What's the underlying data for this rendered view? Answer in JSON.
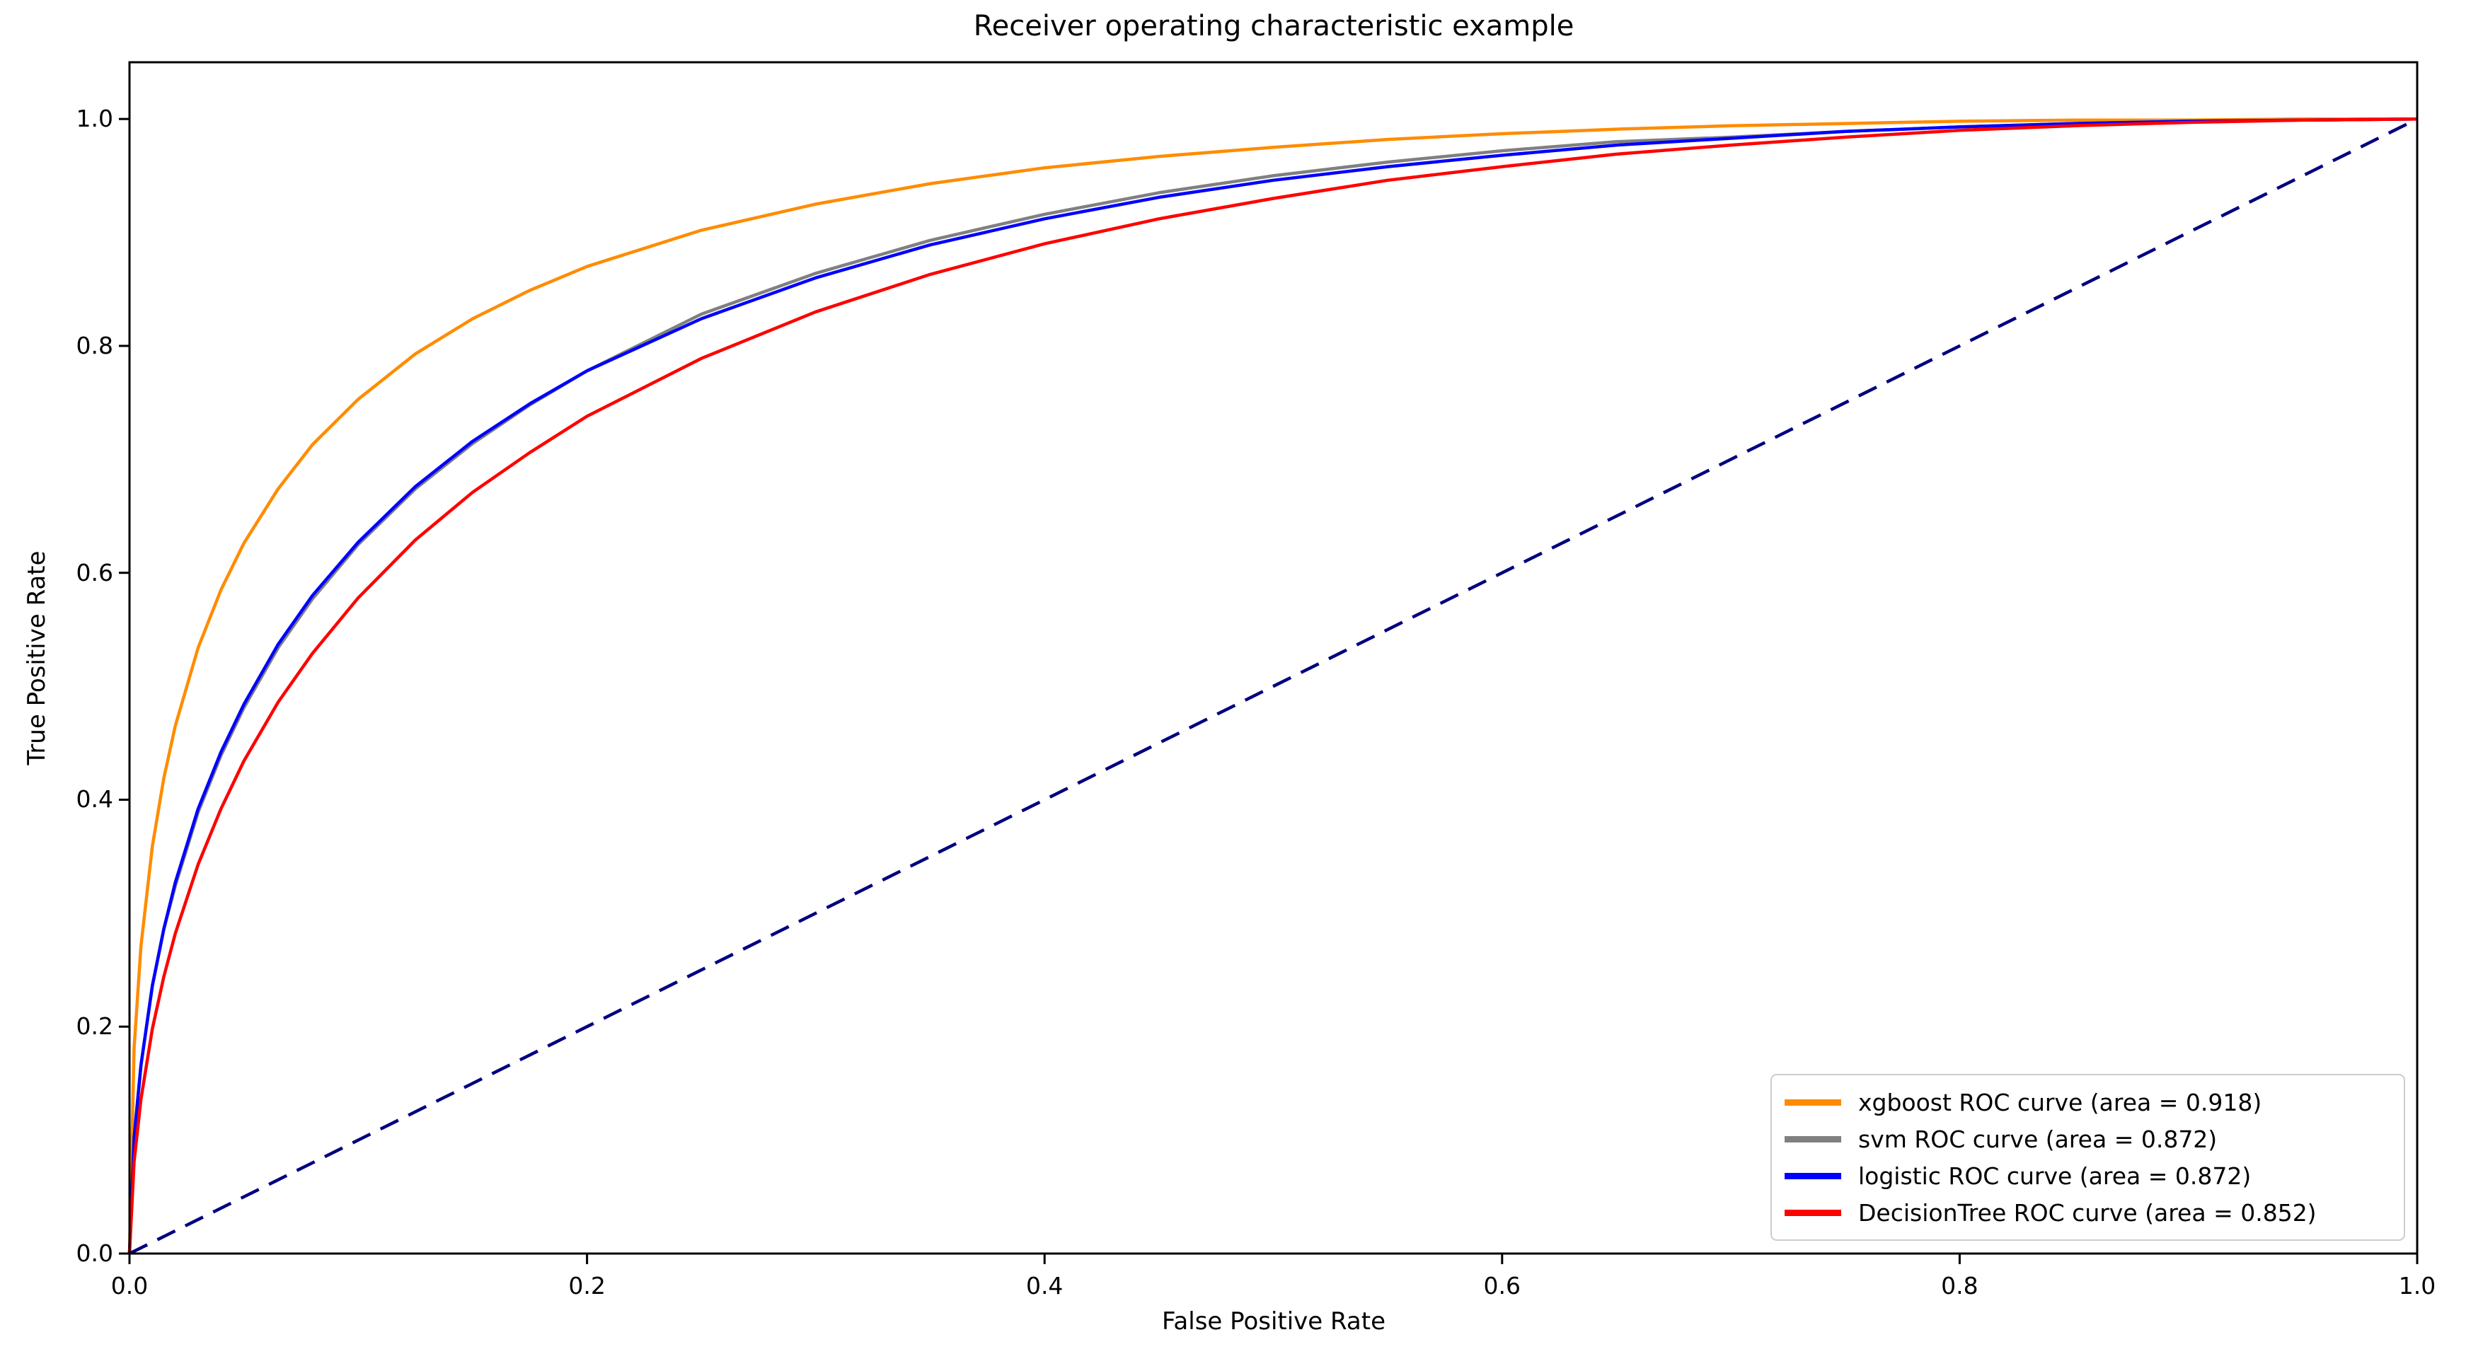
{
  "figure": {
    "title": "Receiver operating characteristic example"
  },
  "chart_data": {
    "type": "line",
    "title": "Receiver operating characteristic example",
    "xlabel": "False Positive Rate",
    "ylabel": "True Positive Rate",
    "xlim": [
      0.0,
      1.0
    ],
    "ylim": [
      0.0,
      1.05
    ],
    "grid": false,
    "legend_position": "lower right",
    "x_ticks": {
      "values": [
        0.0,
        0.2,
        0.4,
        0.6,
        0.8,
        1.0
      ],
      "labels": [
        "0.0",
        "0.2",
        "0.4",
        "0.6",
        "0.8",
        "1.0"
      ]
    },
    "y_ticks": {
      "values": [
        0.0,
        0.2,
        0.4,
        0.6,
        0.8,
        1.0
      ],
      "labels": [
        "0.0",
        "0.2",
        "0.4",
        "0.6",
        "0.8",
        "1.0"
      ]
    },
    "series": [
      {
        "name": "xgboost",
        "label": "xgboost ROC curve (area = 0.918)",
        "auc": 0.918,
        "color": "#FF8C00",
        "style": "solid",
        "in_legend": true,
        "fpr": [
          0,
          0.002,
          0.005,
          0.01,
          0.015,
          0.02,
          0.03,
          0.04,
          0.05,
          0.065,
          0.08,
          0.1,
          0.125,
          0.15,
          0.175,
          0.2,
          0.25,
          0.3,
          0.35,
          0.4,
          0.45,
          0.5,
          0.55,
          0.6,
          0.65,
          0.7,
          0.75,
          0.8,
          0.85,
          0.9,
          0.95,
          1.0
        ],
        "tpr": [
          0,
          0.181,
          0.271,
          0.359,
          0.419,
          0.465,
          0.534,
          0.585,
          0.626,
          0.674,
          0.713,
          0.753,
          0.793,
          0.824,
          0.849,
          0.87,
          0.902,
          0.925,
          0.943,
          0.957,
          0.967,
          0.975,
          0.982,
          0.987,
          0.991,
          0.994,
          0.996,
          0.998,
          0.999,
          0.999,
          1.0,
          1.0
        ]
      },
      {
        "name": "svm",
        "label": "svm ROC curve (area = 0.872)",
        "auc": 0.872,
        "color": "#808080",
        "style": "solid",
        "in_legend": true,
        "fpr": [
          0,
          0.002,
          0.005,
          0.01,
          0.015,
          0.02,
          0.03,
          0.04,
          0.05,
          0.065,
          0.08,
          0.1,
          0.125,
          0.15,
          0.175,
          0.2,
          0.25,
          0.3,
          0.35,
          0.4,
          0.45,
          0.5,
          0.55,
          0.6,
          0.65,
          0.7,
          0.75,
          0.8,
          0.85,
          0.9,
          0.95,
          1.0
        ],
        "tpr": [
          0,
          0.102,
          0.166,
          0.236,
          0.286,
          0.324,
          0.389,
          0.439,
          0.481,
          0.534,
          0.577,
          0.625,
          0.674,
          0.714,
          0.748,
          0.778,
          0.828,
          0.864,
          0.893,
          0.916,
          0.935,
          0.95,
          0.962,
          0.972,
          0.98,
          0.984,
          0.989,
          0.993,
          0.996,
          0.998,
          0.999,
          1.0
        ]
      },
      {
        "name": "logistic",
        "label": "logistic ROC curve (area = 0.872)",
        "auc": 0.872,
        "color": "#0000FF",
        "style": "solid",
        "in_legend": true,
        "fpr": [
          0,
          0.002,
          0.005,
          0.01,
          0.015,
          0.02,
          0.03,
          0.04,
          0.05,
          0.065,
          0.08,
          0.1,
          0.125,
          0.15,
          0.175,
          0.2,
          0.25,
          0.3,
          0.35,
          0.4,
          0.45,
          0.5,
          0.55,
          0.6,
          0.65,
          0.7,
          0.75,
          0.8,
          0.85,
          0.9,
          0.95,
          1.0
        ],
        "tpr": [
          0,
          0.102,
          0.166,
          0.236,
          0.286,
          0.327,
          0.392,
          0.442,
          0.484,
          0.537,
          0.58,
          0.627,
          0.676,
          0.716,
          0.749,
          0.778,
          0.824,
          0.86,
          0.889,
          0.912,
          0.931,
          0.946,
          0.958,
          0.968,
          0.977,
          0.983,
          0.989,
          0.993,
          0.996,
          0.998,
          0.999,
          1.0
        ]
      },
      {
        "name": "DecisionTree",
        "label": "DecisionTree ROC curve (area = 0.852)",
        "auc": 0.852,
        "color": "#FF0000",
        "style": "solid",
        "in_legend": true,
        "fpr": [
          0,
          0.002,
          0.005,
          0.01,
          0.015,
          0.02,
          0.03,
          0.04,
          0.05,
          0.065,
          0.08,
          0.1,
          0.125,
          0.15,
          0.175,
          0.2,
          0.25,
          0.3,
          0.35,
          0.4,
          0.45,
          0.5,
          0.55,
          0.6,
          0.65,
          0.7,
          0.75,
          0.8,
          0.85,
          0.9,
          0.95,
          1.0
        ],
        "tpr": [
          0,
          0.081,
          0.136,
          0.198,
          0.244,
          0.282,
          0.343,
          0.392,
          0.434,
          0.486,
          0.529,
          0.578,
          0.629,
          0.671,
          0.706,
          0.738,
          0.789,
          0.83,
          0.863,
          0.89,
          0.912,
          0.93,
          0.946,
          0.958,
          0.969,
          0.977,
          0.984,
          0.99,
          0.994,
          0.997,
          0.999,
          1.0
        ]
      },
      {
        "name": "chance-diagonal",
        "label": "",
        "color": "#000080",
        "style": "dashed",
        "in_legend": false,
        "fpr": [
          0,
          1
        ],
        "tpr": [
          0,
          1
        ]
      }
    ]
  }
}
